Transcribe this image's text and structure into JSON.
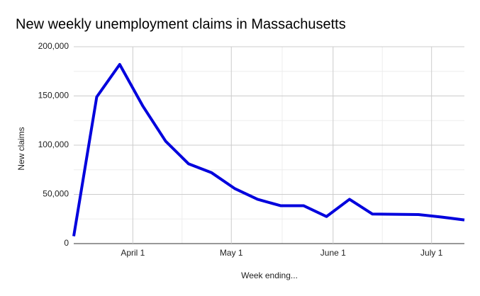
{
  "chart_data": {
    "type": "line",
    "title": "New weekly unemployment claims in Massachusetts",
    "x_label": "Week ending...",
    "y_label": "New claims",
    "x": [
      "March 14",
      "March 21",
      "March 28",
      "April 4",
      "April 11",
      "April 18",
      "April 25",
      "May 2",
      "May 9",
      "May 16",
      "May 23",
      "May 30",
      "June 6",
      "June 13",
      "June 20",
      "June 27",
      "July 4",
      "July 11"
    ],
    "series": [
      {
        "name": "New claims",
        "color": "#0000dd",
        "values": [
          7500,
          149000,
          182000,
          140000,
          104000,
          81000,
          72000,
          56000,
          45000,
          38500,
          38500,
          27500,
          45000,
          30000,
          29800,
          29500,
          27000,
          24000
        ]
      }
    ],
    "xlim": [
      "March 14",
      "July 11"
    ],
    "xticks": [
      "April 1",
      "May 1",
      "June 1",
      "July 1"
    ],
    "ylim": [
      0,
      200000
    ],
    "yticks": [
      0,
      {
        "value": 50000,
        "label": "50,000"
      },
      {
        "value": 100000,
        "label": "100,000"
      },
      {
        "value": 150000,
        "label": "150,000"
      },
      {
        "value": 200000,
        "label": "200,000"
      }
    ],
    "grid": true
  }
}
